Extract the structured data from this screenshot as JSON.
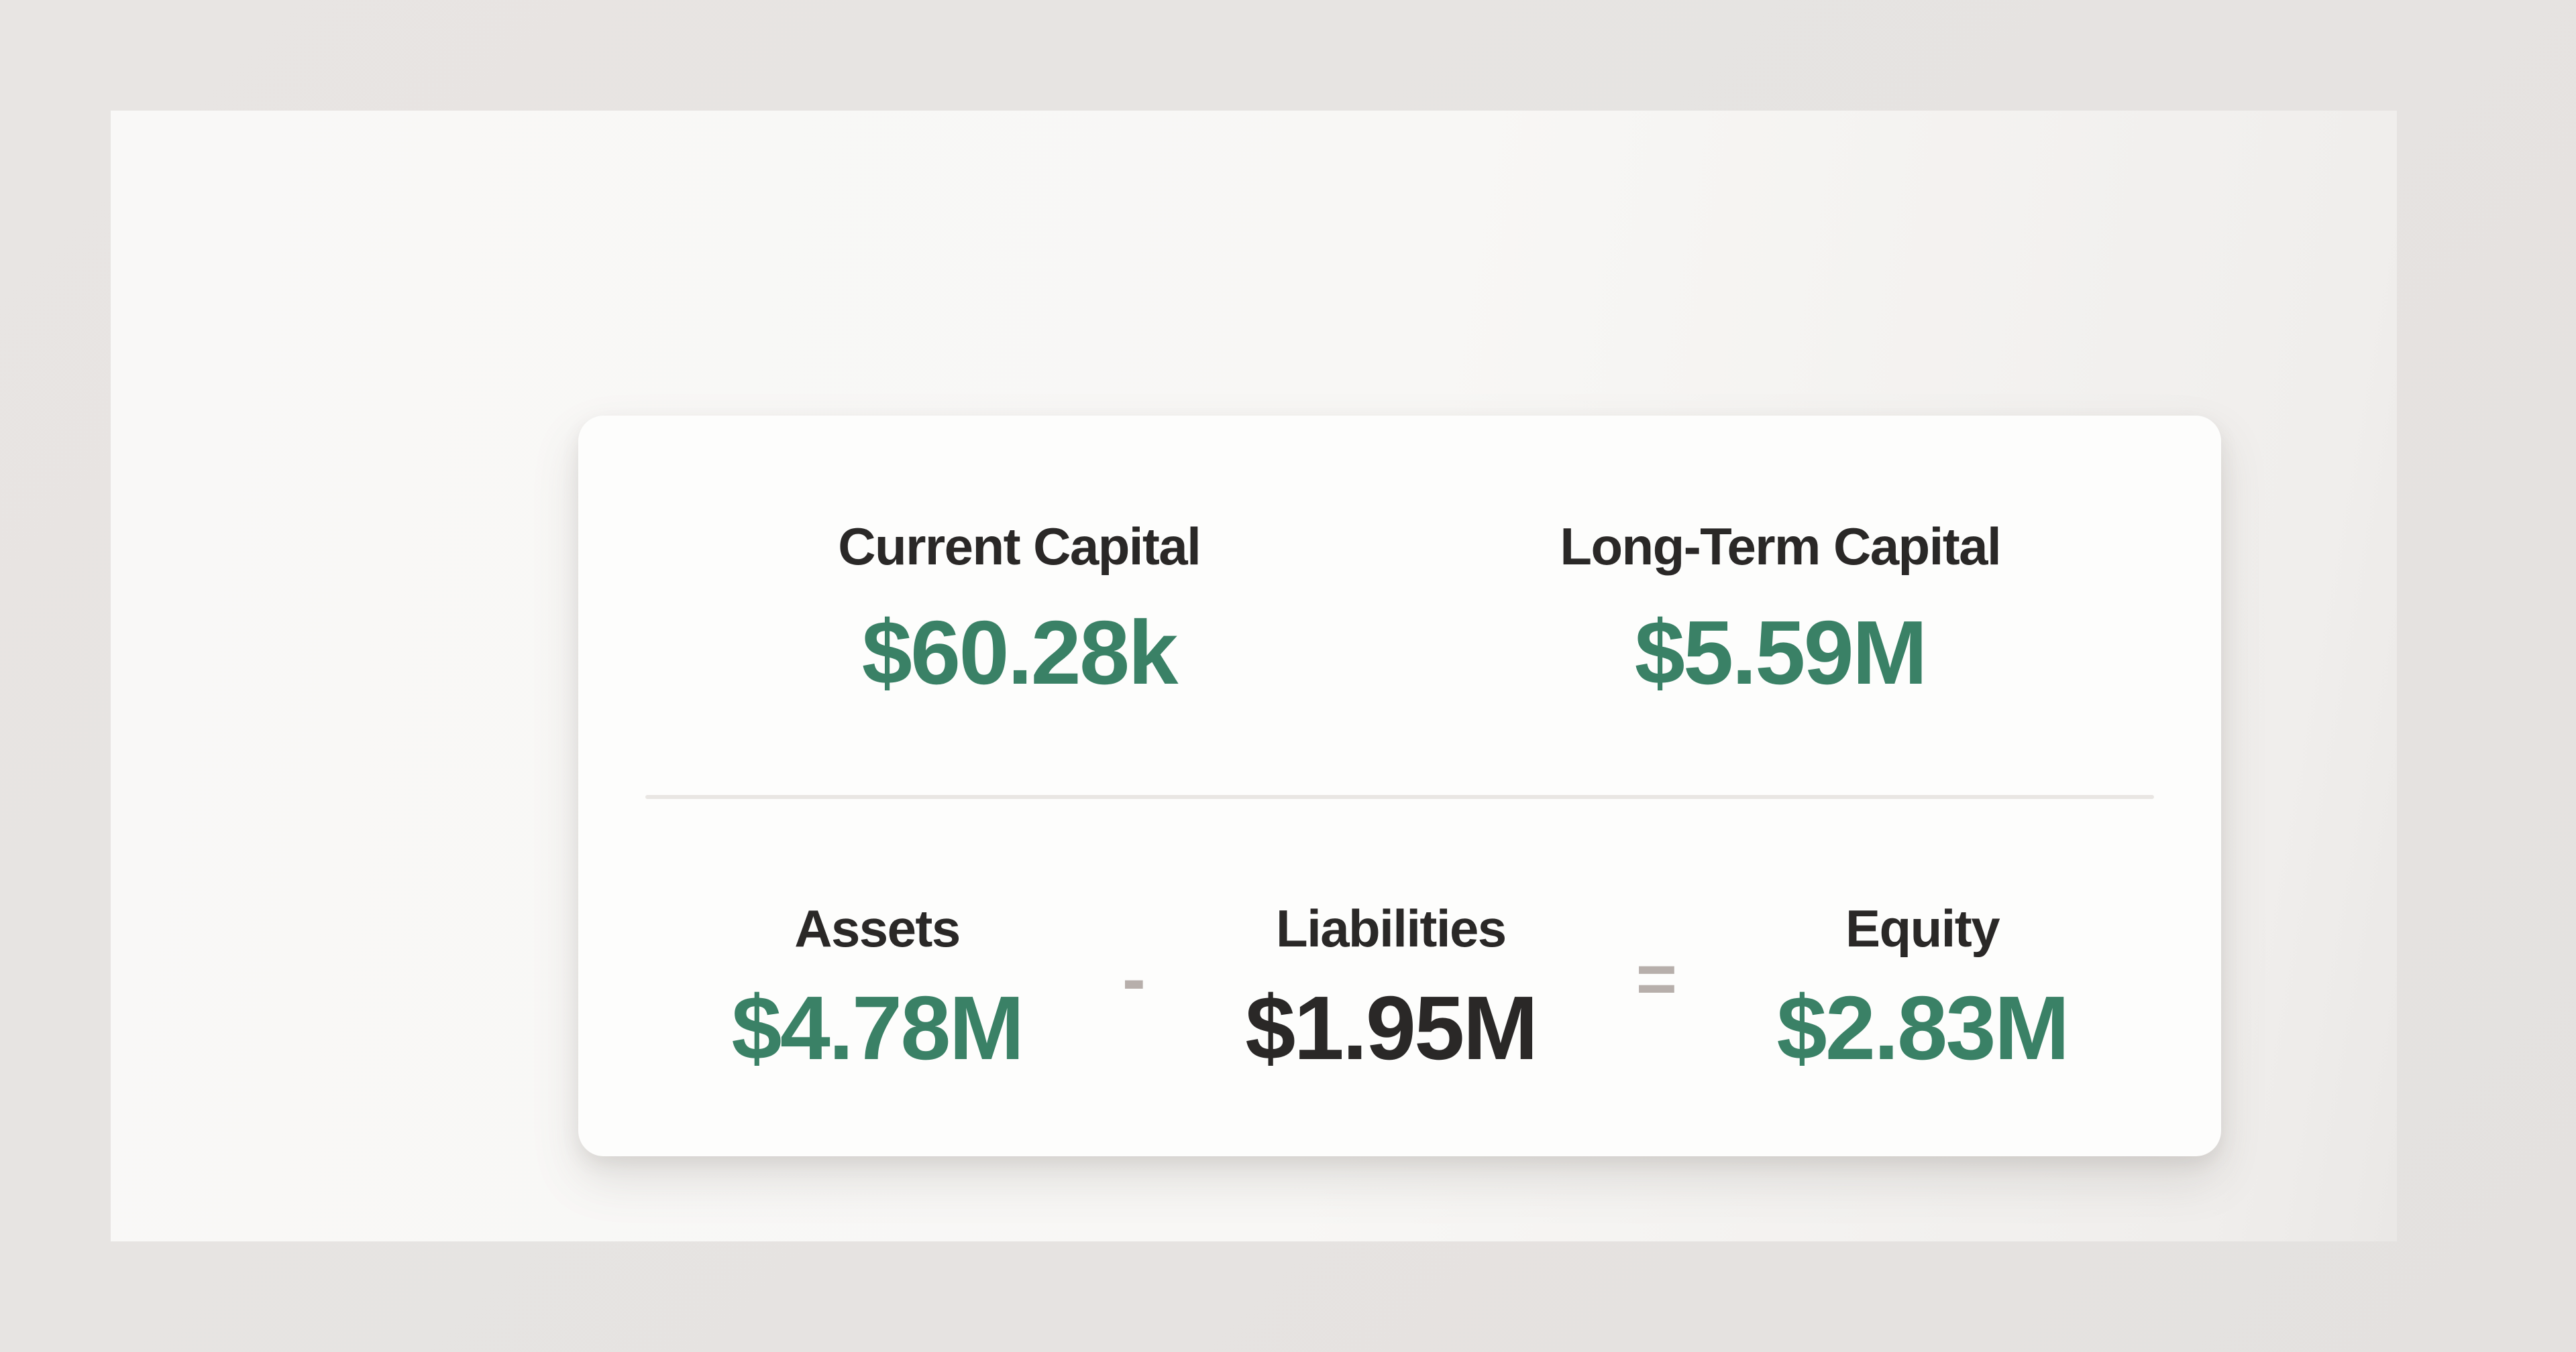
{
  "card": {
    "top_stats": [
      {
        "label": "Current Capital",
        "value": "$60.28k"
      },
      {
        "label": "Long-Term Capital",
        "value": "$5.59M"
      }
    ],
    "equation": {
      "assets": {
        "label": "Assets",
        "value": "$4.78M"
      },
      "minus_operator": "-",
      "liabilities": {
        "label": "Liabilities",
        "value": "$1.95M"
      },
      "equals_operator": "=",
      "equity": {
        "label": "Equity",
        "value": "$2.83M"
      }
    }
  },
  "colors": {
    "positive_green": "#3a8166",
    "text_dark": "#2a2827",
    "operator_gray": "#b7afab",
    "card_bg": "#fdfdfc",
    "panel_bg": "#f8f7f5",
    "page_bg": "#e6e3e1",
    "divider": "#e9e6e3"
  }
}
